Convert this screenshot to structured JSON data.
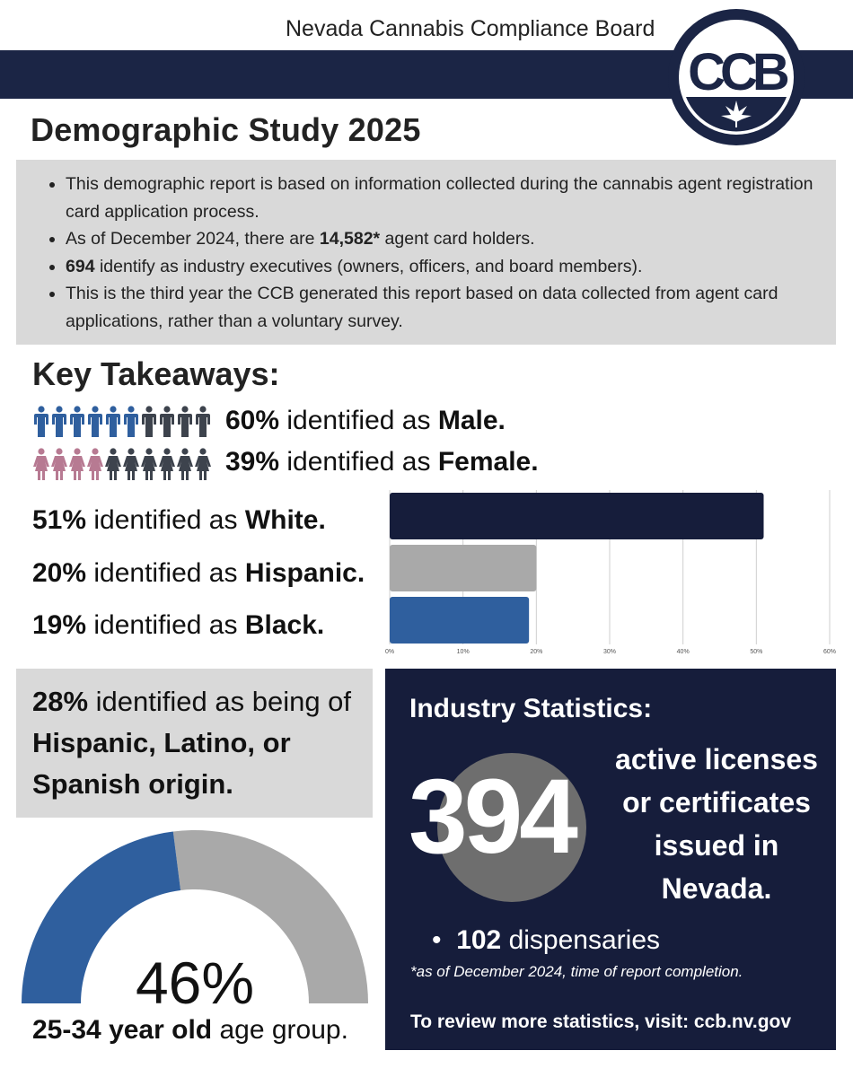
{
  "header": {
    "org_name": "Nevada Cannabis Compliance Board",
    "logo_text": "CCB",
    "bar_color": "#1b2545"
  },
  "title": "Demographic Study 2025",
  "intro": {
    "items": [
      {
        "before": "This demographic report is based on information collected during the cannabis agent registration card application process.",
        "bold": "",
        "after": ""
      },
      {
        "before": "As of December 2024, there are ",
        "bold": "14,582*",
        "after": " agent card holders."
      },
      {
        "before": "",
        "bold": "694",
        "after": " identify as industry executives (owners, officers, and board members)."
      },
      {
        "before": "This is the third year the CCB generated this report based on data collected from agent card applications, rather than a voluntary survey.",
        "bold": "",
        "after": ""
      }
    ]
  },
  "key_takeaways": {
    "title": "Key Takeaways:",
    "male": {
      "pct": "60%",
      "text": " identified as ",
      "label": "Male.",
      "count": 6,
      "total": 10,
      "color": "#2f5f9e"
    },
    "female": {
      "pct": "39%",
      "text": " identified as ",
      "label": "Female.",
      "count": 4,
      "total": 10,
      "color": "#b77a92"
    },
    "person_other_color": "#3d434d",
    "ethnicity": [
      {
        "pct": "51%",
        "text": " identified as ",
        "label": "White."
      },
      {
        "pct": "20%",
        "text": " identified as ",
        "label": "Hispanic."
      },
      {
        "pct": "19%",
        "text": " identified as ",
        "label": "Black."
      }
    ]
  },
  "chart_data": {
    "type": "bar",
    "orientation": "horizontal",
    "categories": [
      "White",
      "Hispanic",
      "Black"
    ],
    "values": [
      51,
      20,
      19
    ],
    "colors": [
      "#161d3b",
      "#a9a9a9",
      "#2f5f9e"
    ],
    "xlim": [
      0,
      60
    ],
    "x_ticks": [
      "0%",
      "10%",
      "20%",
      "30%",
      "40%",
      "50%",
      "60%"
    ],
    "grid": true
  },
  "hispanic_origin": {
    "pct": "28%",
    "text_a": " identified as being of ",
    "label": "Hispanic, Latino, or Spanish origin."
  },
  "age_gauge": {
    "value": 46,
    "display": "46%",
    "fill_color": "#2f5f9e",
    "rest_color": "#a9a9a9",
    "caption_bold": "25-34 year old",
    "caption_rest": " age group."
  },
  "industry": {
    "title": "Industry Statistics:",
    "big_number": "394",
    "desc_lines": [
      "active licenses",
      "or certificates",
      "issued in",
      "Nevada."
    ],
    "bullet_bold": "102",
    "bullet_rest": " dispensaries",
    "note": "*as of December 2024, time of report completion.",
    "footer": "To review more statistics, visit: ccb.nv.gov",
    "circle_color": "#6e6e6e",
    "bg_color": "#161d3b"
  }
}
